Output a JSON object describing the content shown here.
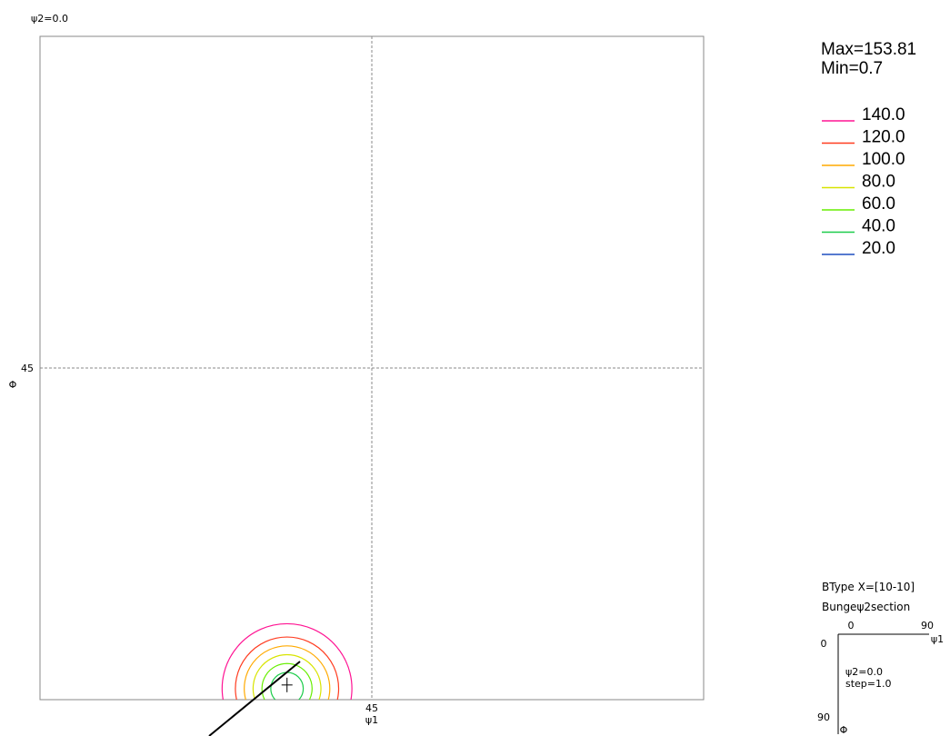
{
  "chart_data": {
    "type": "contour",
    "section_label": "ψ2=0.0",
    "x_axis": {
      "label": "ψ1",
      "tick_label": "45",
      "range": [
        0,
        90
      ],
      "tick": 45
    },
    "y_axis": {
      "label": "Φ",
      "tick_label": "45",
      "range": [
        0,
        90
      ],
      "tick": 45,
      "inverted": true
    },
    "grid": true,
    "stats": {
      "max_label": "Max=153.81",
      "min_label": "Min=0.7"
    },
    "levels": [
      {
        "label": "140.0",
        "value": 140,
        "color": "#ff1493"
      },
      {
        "label": "120.0",
        "value": 120,
        "color": "#ff3b1f"
      },
      {
        "label": "100.0",
        "value": 100,
        "color": "#ffaa00"
      },
      {
        "label": "80.0",
        "value": 80,
        "color": "#d8e400"
      },
      {
        "label": "60.0",
        "value": 60,
        "color": "#66ee00"
      },
      {
        "label": "40.0",
        "value": 40,
        "color": "#1ccc4a"
      },
      {
        "label": "20.0",
        "value": 20,
        "color": "#1e4fbf"
      }
    ],
    "peak": {
      "psi1": 33.5,
      "phi": 88.5
    },
    "contour_radii": [
      1.0,
      2.2,
      3.4,
      4.6,
      5.8,
      7.0,
      8.8
    ],
    "legend_position": "top-right"
  },
  "info": {
    "line1": "BType X=[10-10]",
    "line2": "Bungeψ2section",
    "x_start": "0",
    "x_end": "90",
    "x_label": "ψ1",
    "y_start": "0",
    "y_end": "90",
    "y_label": "Φ",
    "section": "ψ2=0.0",
    "step": "step=1.0"
  }
}
